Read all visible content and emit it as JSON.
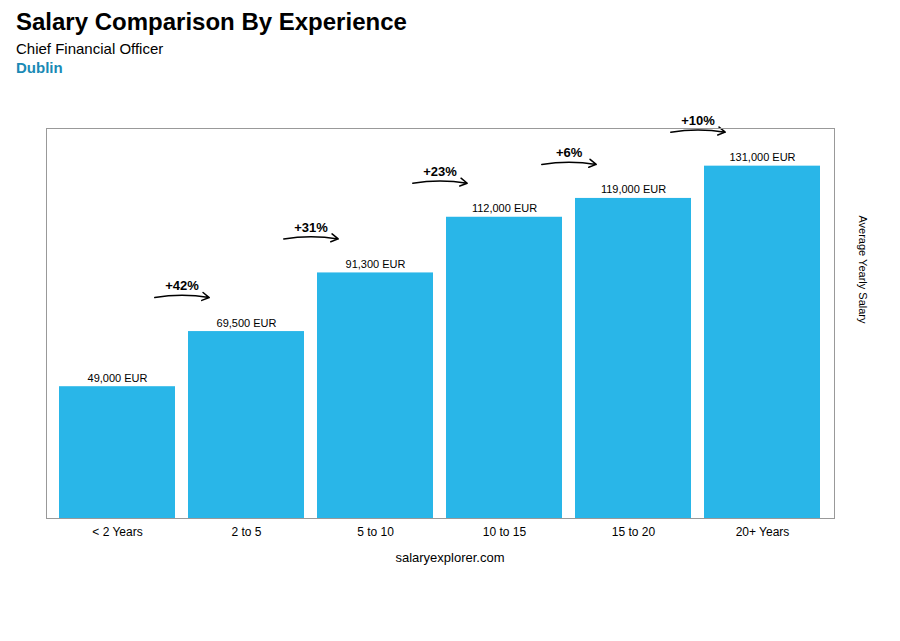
{
  "chart_data": {
    "type": "bar",
    "title": "Salary Comparison By Experience",
    "subtitle": [
      "Chief Financial Officer",
      "Dublin"
    ],
    "categories": [
      "< 2 Years",
      "2 to 5",
      "5 to 10",
      "10 to 15",
      "15 to 20",
      "20+ Years"
    ],
    "values": [
      49000,
      69500,
      91300,
      112000,
      119000,
      131000
    ],
    "value_labels": [
      "49,000 EUR",
      "69,500 EUR",
      "91,300 EUR",
      "112,000 EUR",
      "119,000 EUR",
      "131,000 EUR"
    ],
    "data_labels": true,
    "annotations": [
      "+42%",
      "+31%",
      "+23%",
      "+6%",
      "+10%"
    ],
    "ylabel": "Average Yearly Salary",
    "caption": "salaryexplorer.com",
    "color": "#29b6e8",
    "ylim": [
      0,
      145000
    ],
    "yticks": [],
    "tick_labels": "x",
    "grid": false
  }
}
